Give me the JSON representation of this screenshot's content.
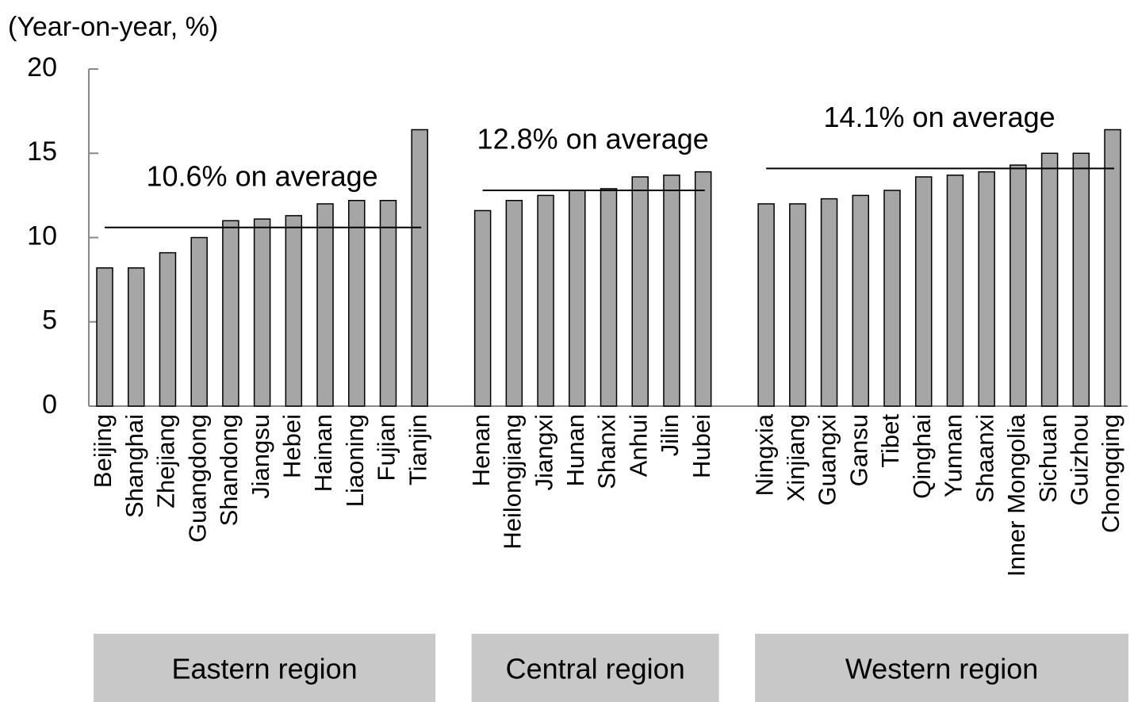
{
  "chart_data": {
    "type": "bar",
    "y_label": "(Year-on-year,  %)",
    "ylim": [
      0,
      20
    ],
    "yticks": [
      0,
      5,
      10,
      15,
      20
    ],
    "color": "#a6a6a6",
    "average_color": "#000000",
    "region_color": "#c8c8c8",
    "groups": [
      {
        "name": "Eastern region",
        "average": 10.6,
        "average_label": "10.6% on average",
        "categories": [
          "Beijing",
          "Shanghai",
          "Zhejiang",
          "Guangdong",
          "Shandong",
          "Jiangsu",
          "Hebei",
          "Hainan",
          "Liaoning",
          "Fujian",
          "Tianjin"
        ],
        "values": [
          8.2,
          8.2,
          9.1,
          10.0,
          11.0,
          11.1,
          11.3,
          12.0,
          12.2,
          12.2,
          16.4
        ]
      },
      {
        "name": "Central region",
        "average": 12.8,
        "average_label": "12.8% on average",
        "categories": [
          "Henan",
          "Heilongjiang",
          "Jiangxi",
          "Hunan",
          "Shanxi",
          "Anhui",
          "Jilin",
          "Hubei"
        ],
        "values": [
          11.6,
          12.2,
          12.5,
          12.8,
          12.9,
          13.6,
          13.7,
          13.9
        ]
      },
      {
        "name": "Western region",
        "average": 14.1,
        "average_label": "14.1% on average",
        "categories": [
          "Ningxia",
          "Xinjiang",
          "Guangxi",
          "Gansu",
          "Tibet",
          "Qinghai",
          "Yunnan",
          "Shaanxi",
          "Inner Mongolia",
          "Sichuan",
          "Guizhou",
          "Chongqing"
        ],
        "values": [
          12.0,
          12.0,
          12.3,
          12.5,
          12.8,
          13.6,
          13.7,
          13.9,
          14.3,
          15.0,
          15.0,
          16.4
        ]
      }
    ]
  }
}
